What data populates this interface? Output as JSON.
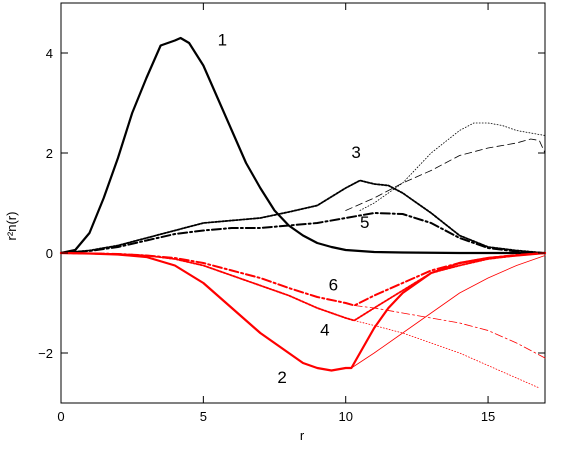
{
  "chart_data": {
    "type": "line",
    "xlabel": "r",
    "ylabel": "r²n(r)",
    "xlim": [
      0,
      17
    ],
    "ylim": [
      -3,
      5
    ],
    "xticks": [
      0,
      5,
      10,
      15
    ],
    "yticks": [
      -2,
      0,
      2,
      4
    ],
    "xtick_labels": [
      "0",
      "5",
      "10",
      "15"
    ],
    "ytick_labels": [
      "−2",
      "0",
      "2",
      "4"
    ],
    "grid": false,
    "legend": "none",
    "colors": {
      "black": "#000000",
      "red": "#ff0000"
    },
    "series": [
      {
        "name": "1",
        "color": "#000000",
        "style": "solid",
        "width": 2.2,
        "label_pos": [
          5.5,
          4.15
        ],
        "points": [
          [
            0,
            0
          ],
          [
            0.5,
            0.06
          ],
          [
            1,
            0.4
          ],
          [
            1.5,
            1.1
          ],
          [
            2,
            1.9
          ],
          [
            2.5,
            2.8
          ],
          [
            3,
            3.5
          ],
          [
            3.5,
            4.15
          ],
          [
            4,
            4.25
          ],
          [
            4.2,
            4.3
          ],
          [
            4.5,
            4.2
          ],
          [
            5,
            3.75
          ],
          [
            5.5,
            3.1
          ],
          [
            6,
            2.45
          ],
          [
            6.5,
            1.8
          ],
          [
            7,
            1.3
          ],
          [
            7.5,
            0.85
          ],
          [
            8,
            0.55
          ],
          [
            8.5,
            0.35
          ],
          [
            9,
            0.2
          ],
          [
            9.5,
            0.12
          ],
          [
            10,
            0.06
          ],
          [
            11,
            0.02
          ],
          [
            12,
            0.01
          ],
          [
            14,
            0
          ],
          [
            17,
            0
          ]
        ]
      },
      {
        "name": "3",
        "color": "#000000",
        "style": "dotted-bold",
        "width": 1.8,
        "label_pos": [
          10.2,
          1.9
        ],
        "points": [
          [
            0,
            0
          ],
          [
            1,
            0.05
          ],
          [
            2,
            0.15
          ],
          [
            3,
            0.3
          ],
          [
            4,
            0.45
          ],
          [
            5,
            0.6
          ],
          [
            6,
            0.65
          ],
          [
            7,
            0.7
          ],
          [
            8,
            0.82
          ],
          [
            9,
            0.95
          ],
          [
            10,
            1.3
          ],
          [
            10.5,
            1.45
          ],
          [
            11,
            1.38
          ],
          [
            11.5,
            1.35
          ],
          [
            12,
            1.2
          ],
          [
            13,
            0.8
          ],
          [
            14,
            0.35
          ],
          [
            15,
            0.12
          ],
          [
            16,
            0.05
          ],
          [
            17,
            0
          ]
        ]
      },
      {
        "name": "5",
        "color": "#000000",
        "style": "dashdot",
        "width": 2.0,
        "label_pos": [
          10.5,
          0.5
        ],
        "points": [
          [
            0,
            0
          ],
          [
            1,
            0.04
          ],
          [
            2,
            0.12
          ],
          [
            3,
            0.25
          ],
          [
            4,
            0.38
          ],
          [
            5,
            0.45
          ],
          [
            6,
            0.5
          ],
          [
            7,
            0.5
          ],
          [
            8,
            0.55
          ],
          [
            9,
            0.6
          ],
          [
            10,
            0.7
          ],
          [
            11,
            0.8
          ],
          [
            12,
            0.78
          ],
          [
            13,
            0.6
          ],
          [
            14,
            0.3
          ],
          [
            15,
            0.1
          ],
          [
            16,
            0.03
          ],
          [
            17,
            0
          ]
        ]
      },
      {
        "name": "",
        "color": "#000000",
        "style": "thin-dotted",
        "width": 0.8,
        "points": [
          [
            10.5,
            0.85
          ],
          [
            11,
            1.0
          ],
          [
            12,
            1.4
          ],
          [
            13,
            2.0
          ],
          [
            14,
            2.45
          ],
          [
            14.5,
            2.6
          ],
          [
            15,
            2.6
          ],
          [
            15.5,
            2.55
          ],
          [
            16,
            2.45
          ],
          [
            16.5,
            2.4
          ],
          [
            17,
            2.35
          ]
        ]
      },
      {
        "name": "",
        "color": "#000000",
        "style": "thin-dashed",
        "width": 0.8,
        "points": [
          [
            10,
            0.85
          ],
          [
            11,
            1.1
          ],
          [
            12,
            1.4
          ],
          [
            13,
            1.65
          ],
          [
            14,
            1.95
          ],
          [
            15,
            2.1
          ],
          [
            16,
            2.2
          ],
          [
            16.5,
            2.28
          ],
          [
            16.8,
            2.25
          ],
          [
            17,
            2.0
          ]
        ]
      },
      {
        "name": "2",
        "color": "#ff0000",
        "style": "solid",
        "width": 2.2,
        "label_pos": [
          7.6,
          -2.6
        ],
        "points": [
          [
            0,
            0
          ],
          [
            1,
            -0.01
          ],
          [
            2,
            -0.03
          ],
          [
            3,
            -0.08
          ],
          [
            4,
            -0.25
          ],
          [
            5,
            -0.6
          ],
          [
            6,
            -1.1
          ],
          [
            7,
            -1.6
          ],
          [
            8,
            -2.0
          ],
          [
            8.5,
            -2.2
          ],
          [
            9,
            -2.3
          ],
          [
            9.5,
            -2.35
          ],
          [
            10,
            -2.3
          ],
          [
            10.2,
            -2.3
          ],
          [
            10.5,
            -2.0
          ],
          [
            11,
            -1.5
          ],
          [
            11.5,
            -1.1
          ],
          [
            12,
            -0.8
          ],
          [
            13,
            -0.4
          ],
          [
            14,
            -0.2
          ],
          [
            15,
            -0.1
          ],
          [
            16,
            -0.05
          ],
          [
            17,
            0
          ]
        ]
      },
      {
        "name": "4",
        "color": "#ff0000",
        "style": "dotted-bold",
        "width": 1.8,
        "label_pos": [
          9.1,
          -1.65
        ],
        "points": [
          [
            0,
            0
          ],
          [
            2,
            -0.02
          ],
          [
            3,
            -0.05
          ],
          [
            4,
            -0.12
          ],
          [
            5,
            -0.25
          ],
          [
            6,
            -0.45
          ],
          [
            7,
            -0.65
          ],
          [
            8,
            -0.85
          ],
          [
            9,
            -1.1
          ],
          [
            10,
            -1.3
          ],
          [
            10.3,
            -1.35
          ],
          [
            11,
            -1.1
          ],
          [
            12,
            -0.75
          ],
          [
            13,
            -0.4
          ],
          [
            14,
            -0.25
          ],
          [
            15,
            -0.12
          ],
          [
            16,
            -0.05
          ],
          [
            17,
            0
          ]
        ]
      },
      {
        "name": "6",
        "color": "#ff0000",
        "style": "dashdot",
        "width": 2.0,
        "label_pos": [
          9.4,
          -0.75
        ],
        "points": [
          [
            0,
            0
          ],
          [
            2,
            -0.02
          ],
          [
            3,
            -0.05
          ],
          [
            4,
            -0.1
          ],
          [
            5,
            -0.2
          ],
          [
            6,
            -0.35
          ],
          [
            7,
            -0.5
          ],
          [
            8,
            -0.7
          ],
          [
            9,
            -0.88
          ],
          [
            10,
            -1.0
          ],
          [
            10.3,
            -1.05
          ],
          [
            11,
            -0.85
          ],
          [
            12,
            -0.6
          ],
          [
            13,
            -0.35
          ],
          [
            14,
            -0.2
          ],
          [
            15,
            -0.1
          ],
          [
            16,
            -0.04
          ],
          [
            17,
            0
          ]
        ]
      },
      {
        "name": "",
        "color": "#ff0000",
        "style": "thin-solid",
        "width": 0.8,
        "points": [
          [
            10.2,
            -2.3
          ],
          [
            11,
            -2.0
          ],
          [
            12,
            -1.6
          ],
          [
            13,
            -1.2
          ],
          [
            14,
            -0.8
          ],
          [
            15,
            -0.5
          ],
          [
            16,
            -0.25
          ],
          [
            17,
            -0.05
          ]
        ]
      },
      {
        "name": "",
        "color": "#ff0000",
        "style": "thin-dashdot",
        "width": 0.8,
        "points": [
          [
            10.3,
            -1.05
          ],
          [
            11,
            -1.1
          ],
          [
            12,
            -1.2
          ],
          [
            13,
            -1.3
          ],
          [
            14,
            -1.4
          ],
          [
            15,
            -1.55
          ],
          [
            16,
            -1.8
          ],
          [
            17,
            -2.1
          ]
        ]
      },
      {
        "name": "",
        "color": "#ff0000",
        "style": "thin-dotted",
        "width": 0.8,
        "points": [
          [
            10.3,
            -1.35
          ],
          [
            11,
            -1.45
          ],
          [
            12,
            -1.6
          ],
          [
            13,
            -1.8
          ],
          [
            14,
            -2.0
          ],
          [
            15,
            -2.25
          ],
          [
            16,
            -2.5
          ],
          [
            16.8,
            -2.7
          ]
        ]
      }
    ]
  }
}
